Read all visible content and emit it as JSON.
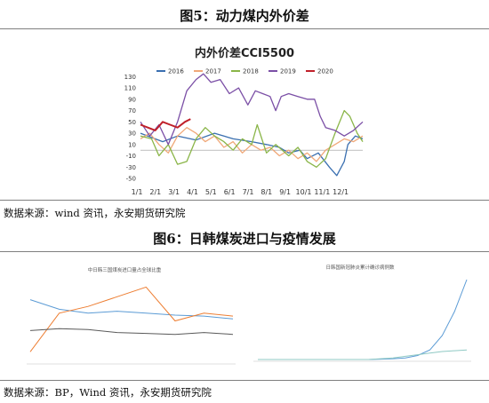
{
  "figures": {
    "fig5": {
      "title": "图5：动力煤内外价差",
      "source": "数据来源：wind 资讯，永安期货研究院"
    },
    "fig6": {
      "title": "图6：日韩煤炭进口与疫情发展",
      "source": "数据来源：BP，Wind 资讯，永安期货研究院"
    }
  },
  "chart_data": [
    {
      "type": "line",
      "title": "内外价差CCI5500",
      "x_ticks": [
        "1/1",
        "2/1",
        "3/1",
        "4/1",
        "5/1",
        "6/1",
        "7/1",
        "8/1",
        "9/1",
        "10/1",
        "11/1",
        "12/1"
      ],
      "ylim": [
        -50,
        140
      ],
      "y_ticks": [
        -50,
        -30,
        -10,
        10,
        30,
        50,
        70,
        90,
        110,
        130
      ],
      "legend_position": "top",
      "grid": false,
      "series": [
        {
          "name": "2016",
          "color": "#3a6fb0",
          "points": [
            [
              0,
              30
            ],
            [
              1.2,
              15
            ],
            [
              2,
              25
            ],
            [
              3,
              18
            ],
            [
              4,
              30
            ],
            [
              5,
              20
            ],
            [
              6,
              15
            ],
            [
              6.8,
              10
            ],
            [
              7.5,
              5
            ],
            [
              8,
              -5
            ],
            [
              8.6,
              0
            ],
            [
              9,
              -15
            ],
            [
              9.6,
              -5
            ],
            [
              10.2,
              -30
            ],
            [
              10.6,
              -45
            ],
            [
              11,
              -20
            ],
            [
              11.2,
              10
            ],
            [
              11.6,
              25
            ],
            [
              12,
              20
            ]
          ]
        },
        {
          "name": "2017",
          "color": "#f0a878",
          "points": [
            [
              0,
              20
            ],
            [
              0.5,
              30
            ],
            [
              1,
              10
            ],
            [
              1.5,
              -5
            ],
            [
              2,
              25
            ],
            [
              2.5,
              40
            ],
            [
              3,
              30
            ],
            [
              3.5,
              15
            ],
            [
              4,
              25
            ],
            [
              4.5,
              5
            ],
            [
              5,
              15
            ],
            [
              5.5,
              -5
            ],
            [
              6,
              10
            ],
            [
              6.5,
              0
            ],
            [
              7,
              5
            ],
            [
              7.5,
              -10
            ],
            [
              8,
              0
            ],
            [
              8.5,
              -15
            ],
            [
              9,
              -5
            ],
            [
              9.5,
              -20
            ],
            [
              10,
              0
            ],
            [
              10.5,
              10
            ],
            [
              11,
              20
            ],
            [
              11.5,
              15
            ],
            [
              12,
              25
            ]
          ]
        },
        {
          "name": "2018",
          "color": "#8ab548",
          "points": [
            [
              0,
              25
            ],
            [
              0.6,
              20
            ],
            [
              1,
              -10
            ],
            [
              1.5,
              10
            ],
            [
              2,
              -25
            ],
            [
              2.5,
              -20
            ],
            [
              3,
              20
            ],
            [
              3.5,
              40
            ],
            [
              4,
              25
            ],
            [
              4.5,
              15
            ],
            [
              5,
              0
            ],
            [
              5.5,
              20
            ],
            [
              6,
              10
            ],
            [
              6.3,
              45
            ],
            [
              6.8,
              -5
            ],
            [
              7.3,
              10
            ],
            [
              8,
              -10
            ],
            [
              8.5,
              5
            ],
            [
              9,
              -20
            ],
            [
              9.5,
              -30
            ],
            [
              10,
              -15
            ],
            [
              10.5,
              30
            ],
            [
              11,
              70
            ],
            [
              11.3,
              60
            ],
            [
              11.7,
              30
            ],
            [
              12,
              15
            ]
          ]
        },
        {
          "name": "2019",
          "color": "#7b4fa6",
          "points": [
            [
              0,
              50
            ],
            [
              0.5,
              25
            ],
            [
              1,
              45
            ],
            [
              1.5,
              10
            ],
            [
              2,
              50
            ],
            [
              2.5,
              105
            ],
            [
              3,
              125
            ],
            [
              3.4,
              135
            ],
            [
              3.8,
              120
            ],
            [
              4.3,
              125
            ],
            [
              4.8,
              100
            ],
            [
              5.3,
              110
            ],
            [
              5.8,
              80
            ],
            [
              6.2,
              105
            ],
            [
              6.6,
              100
            ],
            [
              7,
              95
            ],
            [
              7.3,
              70
            ],
            [
              7.6,
              95
            ],
            [
              8,
              100
            ],
            [
              8.5,
              95
            ],
            [
              9,
              90
            ],
            [
              9.4,
              90
            ],
            [
              9.7,
              60
            ],
            [
              10,
              40
            ],
            [
              10.5,
              35
            ],
            [
              11,
              25
            ],
            [
              11.5,
              35
            ],
            [
              12,
              50
            ]
          ]
        },
        {
          "name": "2020",
          "color": "#c0202a",
          "points": [
            [
              0,
              45
            ],
            [
              0.4,
              40
            ],
            [
              0.8,
              35
            ],
            [
              1.2,
              50
            ],
            [
              1.6,
              45
            ],
            [
              2,
              40
            ],
            [
              2.4,
              50
            ],
            [
              2.7,
              55
            ]
          ]
        }
      ]
    },
    {
      "type": "line",
      "title": "中日韩三国煤炭进口量占全球比重",
      "series": [
        {
          "color": "#5b9bd5",
          "values": [
            62,
            52,
            48,
            50,
            48,
            46,
            45,
            42
          ]
        },
        {
          "color": "#ed7d31",
          "values": [
            8,
            48,
            55,
            65,
            75,
            40,
            48,
            45
          ]
        },
        {
          "color": "#595959",
          "values": [
            30,
            32,
            31,
            28,
            27,
            26,
            28,
            26
          ]
        }
      ]
    },
    {
      "type": "line",
      "title": "日韩国新冠肺炎累计确诊病例数",
      "series": [
        {
          "color": "#5b9bd5",
          "values": [
            0,
            0,
            0,
            0,
            0,
            0,
            0,
            0,
            0,
            0,
            0.5,
            1,
            2,
            5,
            12,
            30,
            60,
            100
          ]
        },
        {
          "color": "#8fc9c4",
          "values": [
            0,
            0,
            0,
            0,
            0,
            0,
            0,
            0,
            0,
            0,
            1,
            2,
            4,
            6,
            8,
            10,
            11,
            12
          ]
        }
      ]
    }
  ]
}
